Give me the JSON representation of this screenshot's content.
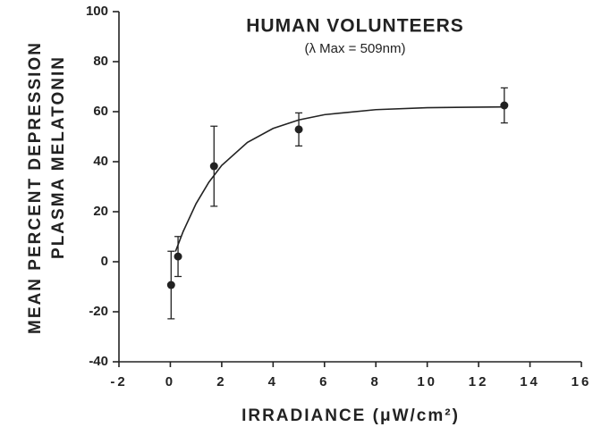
{
  "chart_data": {
    "type": "scatter",
    "title": "HUMAN VOLUNTEERS",
    "subtitle": "(λ Max = 509nm)",
    "y_label_lines": [
      "MEAN PERCENT DEPRESSION",
      "PLASMA MELATONIN"
    ],
    "x_label": "IRRADIANCE (μW/cm²)",
    "xlim": [
      -2,
      16
    ],
    "xticks": [
      -2,
      0,
      2,
      4,
      6,
      8,
      10,
      12,
      14,
      16
    ],
    "ylim": [
      -40,
      100
    ],
    "yticks": [
      -40,
      -20,
      0,
      20,
      40,
      60,
      80,
      100
    ],
    "color": "#222222",
    "points": {
      "x": [
        0.03,
        0.3,
        1.7,
        5,
        13
      ],
      "values": [
        -9.3,
        2.1,
        38.2,
        52.9,
        62.5
      ],
      "errors": [
        13.5,
        8,
        16,
        6.6,
        7
      ]
    },
    "fit": {
      "x": [
        0.2,
        0.5,
        1,
        1.5,
        2,
        3,
        4,
        5,
        6,
        8,
        10,
        12,
        13
      ],
      "values": [
        4.1,
        12.1,
        23.2,
        31.8,
        38.5,
        47.7,
        53.3,
        56.7,
        58.8,
        60.8,
        61.6,
        61.8,
        61.9
      ]
    }
  }
}
